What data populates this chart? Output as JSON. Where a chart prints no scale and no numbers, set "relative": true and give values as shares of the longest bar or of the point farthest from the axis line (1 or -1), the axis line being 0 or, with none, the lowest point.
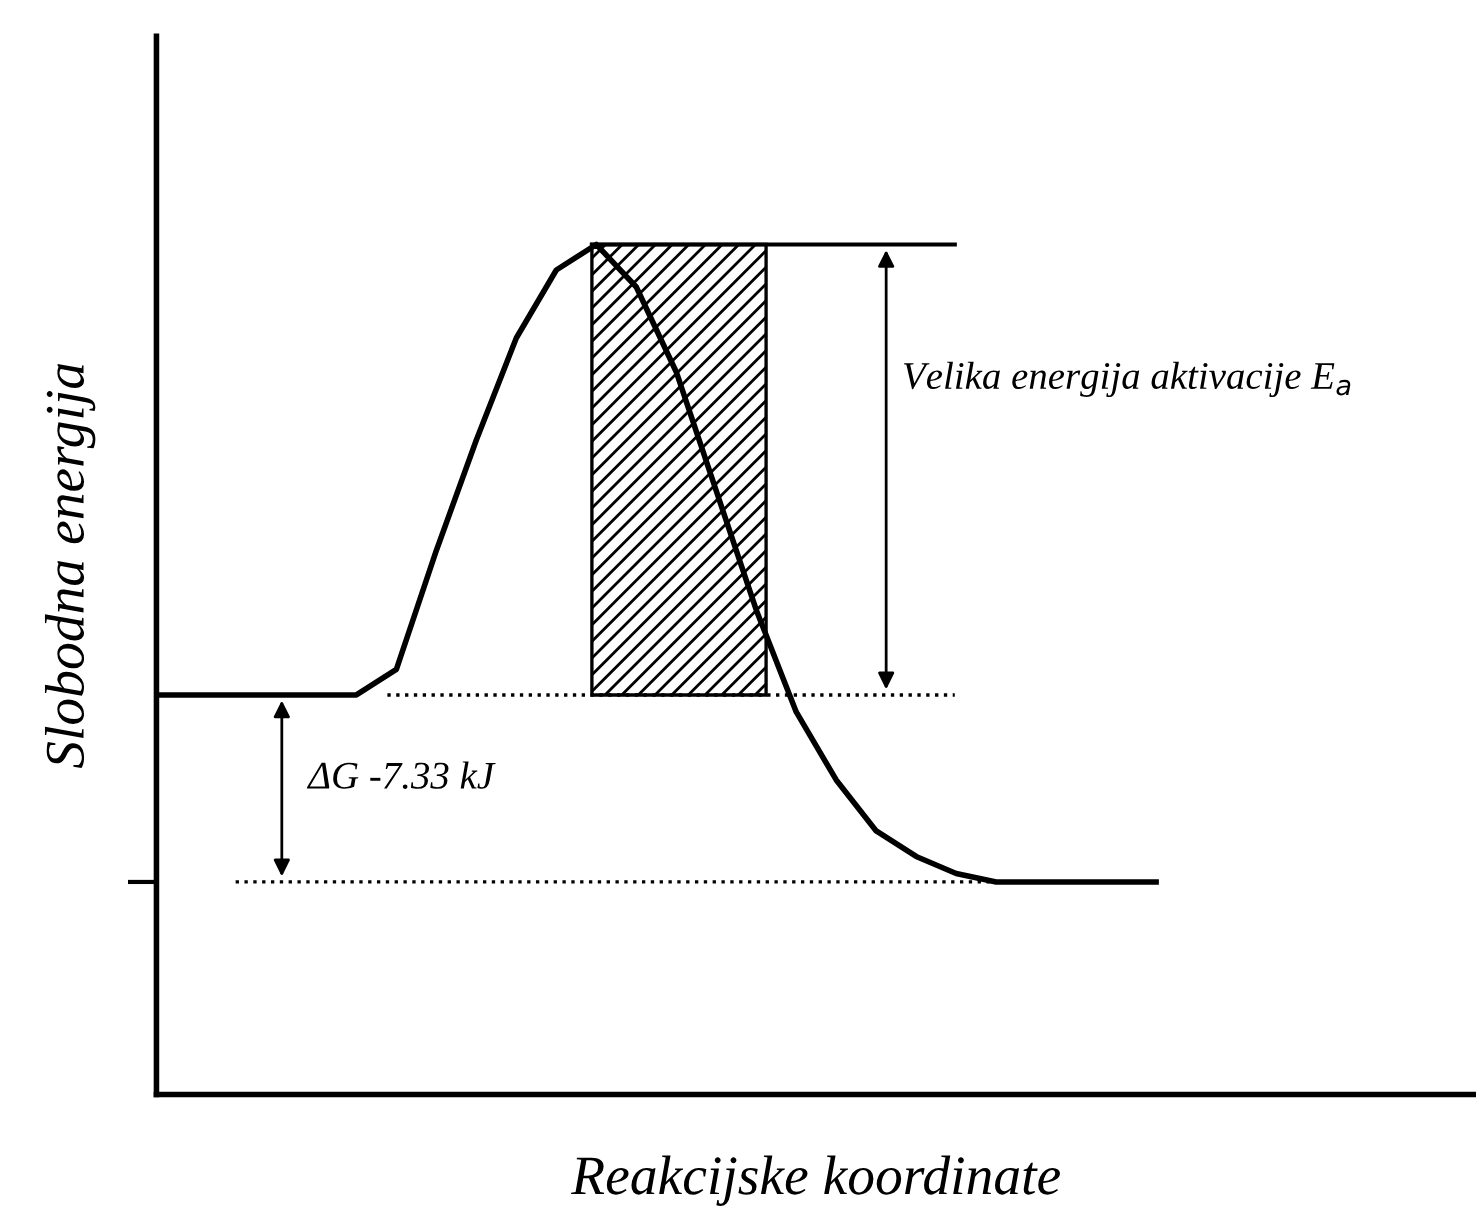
{
  "chart_data": {
    "type": "line",
    "relative": true,
    "xlabel": "Reakcijske koordinate",
    "ylabel": "Slobodna energija",
    "categories": [
      null,
      null,
      null,
      null,
      null,
      null,
      null,
      null,
      null,
      null,
      null,
      null,
      null,
      null,
      null,
      null,
      null,
      null,
      null,
      null,
      null,
      null,
      null,
      null,
      null,
      null,
      null,
      null,
      null,
      null,
      null,
      null,
      null,
      null
    ],
    "series": [
      {
        "color": "#000000",
        "values": [
          0.47,
          0.47,
          0.47,
          0.47,
          0.47,
          0.47,
          0.5,
          0.64,
          0.77,
          0.89,
          0.97,
          1.0,
          0.95,
          0.85,
          0.71,
          0.57,
          0.45,
          0.37,
          0.31,
          0.28,
          0.26,
          0.25,
          0.25,
          0.25,
          0.25,
          0.25,
          null,
          null,
          null,
          null,
          null,
          null,
          null,
          null
        ]
      }
    ],
    "ref_lines": [
      {
        "axis": "y",
        "value": 0.47,
        "line_style": "dotted",
        "color": "#000000"
      },
      {
        "axis": "y",
        "value": 0.25,
        "line_style": "dotted",
        "color": "#000000"
      },
      {
        "axis": "y",
        "value": 1.0,
        "line_style": "solid",
        "color": "#000000"
      }
    ],
    "annotations": [
      "Velika energija aktivacije E$_{a}$",
      "ΔG -7.33 kJ"
    ],
    "marker": "none",
    "line_style": "solid"
  }
}
